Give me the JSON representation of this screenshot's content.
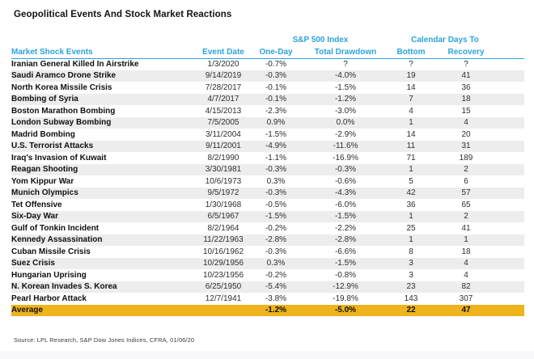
{
  "page": {
    "title": "Geopolitical Events And Stock Market Reactions",
    "source_note": "Source: LPL Research, S&P Dow Jones Indices, CFRA, 01/06/20"
  },
  "colors": {
    "header_blue": "#2BA3DC",
    "highlight_gold": "#EEB31D",
    "stripe_gray": "#EDEDED",
    "text_black": "#111111"
  },
  "chart_data": {
    "type": "table",
    "title": "Geopolitical Events And Stock Market Reactions",
    "column_groups": [
      {
        "label": "S&P 500 Index",
        "columns": [
          "One-Day",
          "Total Drawdown"
        ]
      },
      {
        "label": "Calendar Days To",
        "columns": [
          "Bottom",
          "Recovery"
        ]
      }
    ],
    "columns": [
      "Market Shock Events",
      "Event Date",
      "One-Day",
      "Total Drawdown",
      "Bottom",
      "Recovery"
    ],
    "rows": [
      [
        "Iranian General Killed In Airstrike",
        "1/3/2020",
        "-0.7%",
        "?",
        "?",
        "?"
      ],
      [
        "Saudi Aramco Drone Strike",
        "9/14/2019",
        "-0.3%",
        "-4.0%",
        "19",
        "41"
      ],
      [
        "North Korea Missile Crisis",
        "7/28/2017",
        "-0.1%",
        "-1.5%",
        "14",
        "36"
      ],
      [
        "Bombing of Syria",
        "4/7/2017",
        "-0.1%",
        "-1.2%",
        "7",
        "18"
      ],
      [
        "Boston Marathon Bombing",
        "4/15/2013",
        "-2.3%",
        "-3.0%",
        "4",
        "15"
      ],
      [
        "London Subway Bombing",
        "7/5/2005",
        "0.9%",
        "0.0%",
        "1",
        "4"
      ],
      [
        "Madrid Bombing",
        "3/11/2004",
        "-1.5%",
        "-2.9%",
        "14",
        "20"
      ],
      [
        "U.S. Terrorist Attacks",
        "9/11/2001",
        "-4.9%",
        "-11.6%",
        "11",
        "31"
      ],
      [
        "Iraq's Invasion of Kuwait",
        "8/2/1990",
        "-1.1%",
        "-16.9%",
        "71",
        "189"
      ],
      [
        "Reagan Shooting",
        "3/30/1981",
        "-0.3%",
        "-0.3%",
        "1",
        "2"
      ],
      [
        "Yom Kippur War",
        "10/6/1973",
        "0.3%",
        "-0.6%",
        "5",
        "6"
      ],
      [
        "Munich Olympics",
        "9/5/1972",
        "-0.3%",
        "-4.3%",
        "42",
        "57"
      ],
      [
        "Tet Offensive",
        "1/30/1968",
        "-0.5%",
        "-6.0%",
        "36",
        "65"
      ],
      [
        "Six-Day War",
        "6/5/1967",
        "-1.5%",
        "-1.5%",
        "1",
        "2"
      ],
      [
        "Gulf of Tonkin Incident",
        "8/2/1964",
        "-0.2%",
        "-2.2%",
        "25",
        "41"
      ],
      [
        "Kennedy Assassination",
        "11/22/1963",
        "-2.8%",
        "-2.8%",
        "1",
        "1"
      ],
      [
        "Cuban Missile Crisis",
        "10/16/1962",
        "-0.3%",
        "-6.6%",
        "8",
        "18"
      ],
      [
        "Suez Crisis",
        "10/29/1956",
        "0.3%",
        "-1.5%",
        "3",
        "4"
      ],
      [
        "Hungarian Uprising",
        "10/23/1956",
        "-0.2%",
        "-0.8%",
        "3",
        "4"
      ],
      [
        "N. Korean Invades S. Korea",
        "6/25/1950",
        "-5.4%",
        "-12.9%",
        "23",
        "82"
      ],
      [
        "Pearl Harbor Attack",
        "12/7/1941",
        "-3.8%",
        "-19.8%",
        "143",
        "307"
      ]
    ],
    "average_row": [
      "Average",
      "",
      "-1.2%",
      "-5.0%",
      "22",
      "47"
    ],
    "source": "Source: LPL Research, S&P Dow Jones Indices, CFRA, 01/06/20",
    "layout": {
      "striped": true,
      "highlight_row": "Average"
    }
  }
}
